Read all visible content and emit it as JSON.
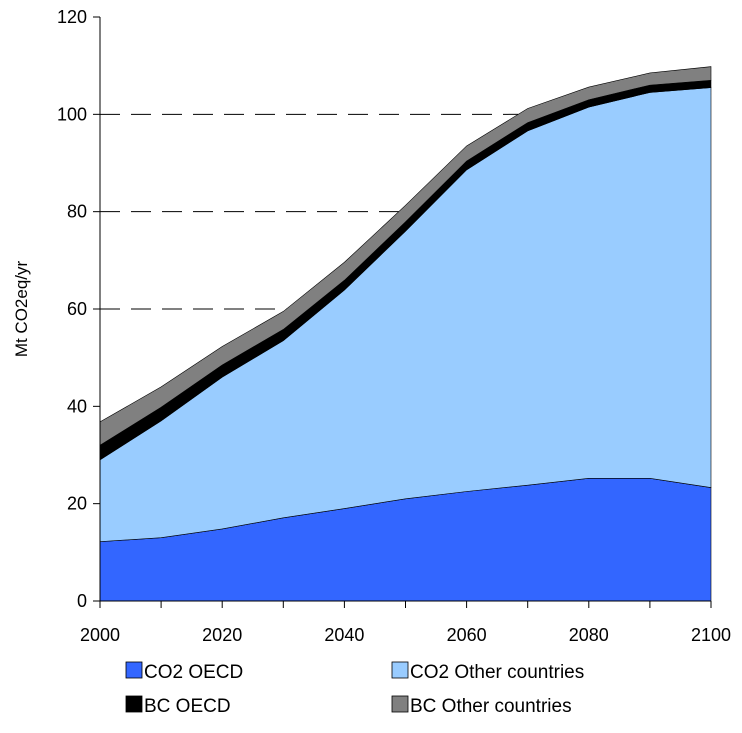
{
  "chart_data": {
    "type": "area",
    "stacked": true,
    "title": "",
    "xlabel": "",
    "ylabel": "Mt CO2eq/yr",
    "x": [
      2000,
      2010,
      2020,
      2030,
      2040,
      2050,
      2060,
      2070,
      2080,
      2090,
      2100
    ],
    "x_ticks": [
      2000,
      2020,
      2040,
      2060,
      2080,
      2100
    ],
    "y_ticks": [
      0,
      20,
      40,
      60,
      80,
      100,
      120
    ],
    "ylim": [
      0,
      120
    ],
    "xlim": [
      2000,
      2100
    ],
    "grid": "horizontal dashed at 60, 80, 100",
    "legend_position": "bottom",
    "series": [
      {
        "name": "CO2 OECD",
        "color": "#3366ff",
        "values": [
          12.2,
          13.0,
          14.8,
          17.1,
          19.0,
          21.0,
          22.5,
          23.8,
          25.2,
          25.2,
          23.3
        ]
      },
      {
        "name": "CO2 Other countries",
        "color": "#99ccff",
        "values": [
          16.8,
          24.0,
          31.2,
          36.4,
          44.9,
          55.0,
          66.1,
          72.8,
          76.3,
          79.3,
          82.2
        ]
      },
      {
        "name": "BC OECD",
        "color": "#000000",
        "values": [
          3.0,
          2.8,
          2.5,
          2.3,
          2.0,
          1.9,
          1.8,
          1.7,
          1.5,
          1.5,
          1.5
        ]
      },
      {
        "name": "BC Other countries",
        "color": "#808080",
        "values": [
          4.8,
          4.2,
          3.8,
          3.7,
          3.7,
          3.4,
          3.1,
          2.9,
          2.6,
          2.5,
          2.8
        ]
      }
    ]
  }
}
